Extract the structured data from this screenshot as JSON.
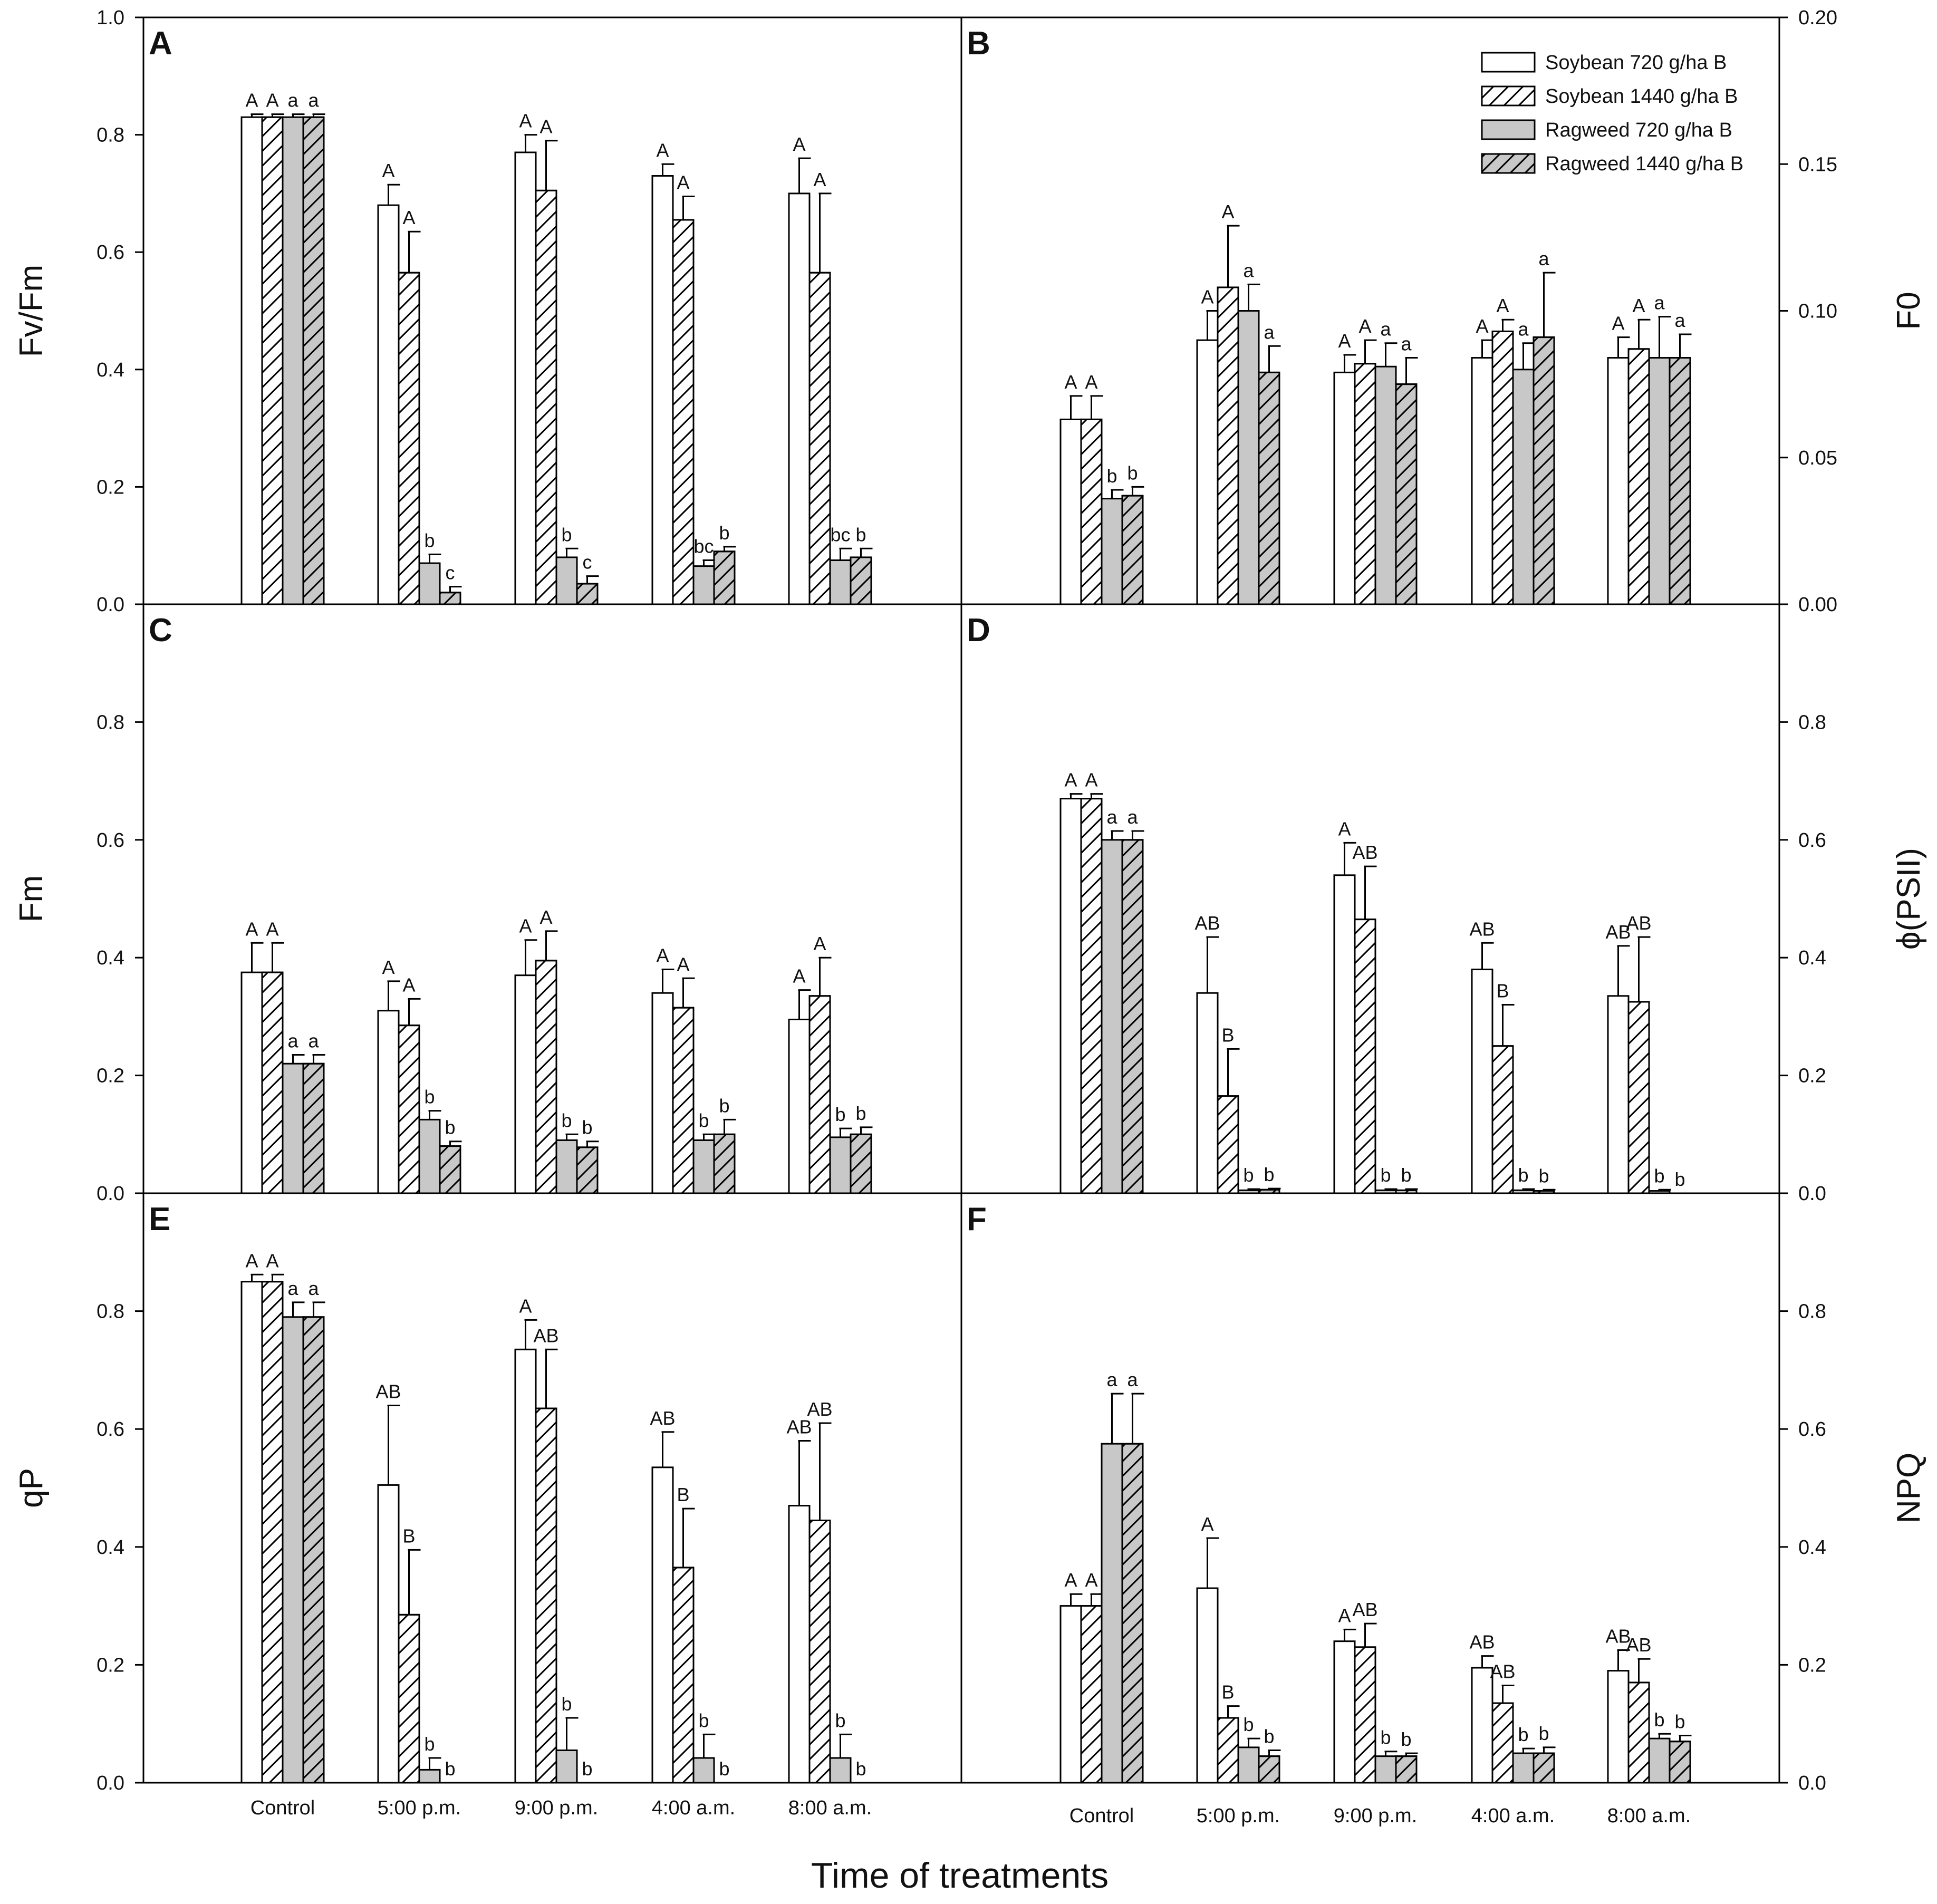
{
  "figure": {
    "xlabel": "Time of treatments"
  },
  "legend": [
    {
      "label": "Soybean 720 g/ha B",
      "fill": "white",
      "hatch": false
    },
    {
      "label": "Soybean 1440 g/ha B",
      "fill": "white",
      "hatch": true
    },
    {
      "label": "Ragweed 720 g/ha B",
      "fill": "gray",
      "hatch": false
    },
    {
      "label": "Ragweed 1440 g/ha B",
      "fill": "gray",
      "hatch": true
    }
  ],
  "colors": {
    "white": "#ffffff",
    "gray": "#c8c8c8",
    "stroke": "#000000"
  },
  "chart_data": [
    {
      "id": "A",
      "type": "bar",
      "label": "A",
      "ylabel": "Fv/Fm",
      "ylim": [
        0,
        1.0
      ],
      "ticks": [
        "0.0",
        "0.2",
        "0.4",
        "0.6",
        "0.8",
        "1.0"
      ],
      "categories": [
        "Control",
        "5:00 p.m.",
        "9:00 p.m.",
        "4:00 a.m.",
        "8:00 a.m."
      ],
      "series": [
        {
          "name": "Soybean 720 g/ha B",
          "values": [
            0.83,
            0.68,
            0.77,
            0.73,
            0.7
          ],
          "errors": [
            0.005,
            0.035,
            0.03,
            0.02,
            0.06
          ],
          "letters": [
            "A",
            "A",
            "A",
            "A",
            "A"
          ]
        },
        {
          "name": "Soybean 1440 g/ha B",
          "values": [
            0.83,
            0.565,
            0.705,
            0.655,
            0.565
          ],
          "errors": [
            0.005,
            0.07,
            0.085,
            0.04,
            0.135
          ],
          "letters": [
            "A",
            "A",
            "A",
            "A",
            "A"
          ]
        },
        {
          "name": "Ragweed 720 g/ha B",
          "values": [
            0.83,
            0.07,
            0.08,
            0.065,
            0.075
          ],
          "errors": [
            0.005,
            0.015,
            0.015,
            0.01,
            0.02
          ],
          "letters": [
            "a",
            "b",
            "b",
            "bc",
            "bc"
          ]
        },
        {
          "name": "Ragweed 1440 g/ha B",
          "values": [
            0.83,
            0.02,
            0.035,
            0.09,
            0.08
          ],
          "errors": [
            0.005,
            0.01,
            0.013,
            0.008,
            0.015
          ],
          "letters": [
            "a",
            "c",
            "c",
            "b",
            "b"
          ]
        }
      ]
    },
    {
      "id": "B",
      "type": "bar",
      "label": "B",
      "ylabel": "F0",
      "ylim": [
        0,
        0.2
      ],
      "ticks": [
        "0.00",
        "0.05",
        "0.10",
        "0.15",
        "0.20"
      ],
      "categories": [
        "Control",
        "5:00 p.m.",
        "9:00 p.m.",
        "4:00 a.m.",
        "8:00 a.m."
      ],
      "series": [
        {
          "name": "Soybean 720 g/ha B",
          "values": [
            0.063,
            0.09,
            0.079,
            0.084,
            0.084
          ],
          "errors": [
            0.008,
            0.01,
            0.006,
            0.006,
            0.007
          ],
          "letters": [
            "A",
            "A",
            "A",
            "A",
            "A"
          ]
        },
        {
          "name": "Soybean 1440 g/ha B",
          "values": [
            0.063,
            0.108,
            0.082,
            0.093,
            0.087
          ],
          "errors": [
            0.008,
            0.021,
            0.008,
            0.004,
            0.01
          ],
          "letters": [
            "A",
            "A",
            "A",
            "A",
            "A"
          ]
        },
        {
          "name": "Ragweed 720 g/ha B",
          "values": [
            0.036,
            0.1,
            0.081,
            0.08,
            0.084
          ],
          "errors": [
            0.003,
            0.009,
            0.008,
            0.009,
            0.014
          ],
          "letters": [
            "b",
            "a",
            "a",
            "a",
            "a"
          ]
        },
        {
          "name": "Ragweed 1440 g/ha B",
          "values": [
            0.037,
            0.079,
            0.075,
            0.091,
            0.084
          ],
          "errors": [
            0.003,
            0.009,
            0.009,
            0.022,
            0.008
          ],
          "letters": [
            "b",
            "a",
            "a",
            "a",
            "a"
          ]
        }
      ]
    },
    {
      "id": "C",
      "type": "bar",
      "label": "C",
      "ylabel": "Fm",
      "ylim": [
        0,
        1.0
      ],
      "ticks": [
        "0.0",
        "0.2",
        "0.4",
        "0.6",
        "0.8"
      ],
      "categories": [
        "Control",
        "5:00 p.m.",
        "9:00 p.m.",
        "4:00 a.m.",
        "8:00 a.m."
      ],
      "series": [
        {
          "name": "Soybean 720 g/ha B",
          "values": [
            0.375,
            0.31,
            0.37,
            0.34,
            0.295
          ],
          "errors": [
            0.05,
            0.05,
            0.06,
            0.04,
            0.05
          ],
          "letters": [
            "A",
            "A",
            "A",
            "A",
            "A"
          ]
        },
        {
          "name": "Soybean 1440 g/ha B",
          "values": [
            0.375,
            0.285,
            0.395,
            0.315,
            0.335
          ],
          "errors": [
            0.05,
            0.045,
            0.05,
            0.05,
            0.065
          ],
          "letters": [
            "A",
            "A",
            "A",
            "A",
            "A"
          ]
        },
        {
          "name": "Ragweed 720 g/ha B",
          "values": [
            0.22,
            0.125,
            0.09,
            0.09,
            0.095
          ],
          "errors": [
            0.015,
            0.015,
            0.01,
            0.01,
            0.015
          ],
          "letters": [
            "a",
            "b",
            "b",
            "b",
            "b"
          ]
        },
        {
          "name": "Ragweed 1440 g/ha B",
          "values": [
            0.22,
            0.08,
            0.078,
            0.1,
            0.1
          ],
          "errors": [
            0.015,
            0.008,
            0.01,
            0.025,
            0.012
          ],
          "letters": [
            "a",
            "b",
            "b",
            "b",
            "b"
          ]
        }
      ]
    },
    {
      "id": "D",
      "type": "bar",
      "label": "D",
      "ylabel": "ϕ(PSII)",
      "ylim": [
        0,
        1.0
      ],
      "ticks": [
        "0.0",
        "0.2",
        "0.4",
        "0.6",
        "0.8"
      ],
      "categories": [
        "Control",
        "5:00 p.m.",
        "9:00 p.m.",
        "4:00 a.m.",
        "8:00 a.m."
      ],
      "series": [
        {
          "name": "Soybean 720 g/ha B",
          "values": [
            0.67,
            0.34,
            0.54,
            0.38,
            0.335
          ],
          "errors": [
            0.008,
            0.095,
            0.055,
            0.045,
            0.085
          ],
          "letters": [
            "A",
            "AB",
            "A",
            "AB",
            "AB"
          ]
        },
        {
          "name": "Soybean 1440 g/ha B",
          "values": [
            0.67,
            0.165,
            0.465,
            0.25,
            0.325
          ],
          "errors": [
            0.008,
            0.08,
            0.09,
            0.07,
            0.11
          ],
          "letters": [
            "A",
            "B",
            "AB",
            "B",
            "AB"
          ]
        },
        {
          "name": "Ragweed 720 g/ha B",
          "values": [
            0.6,
            0.005,
            0.005,
            0.005,
            0.004
          ],
          "errors": [
            0.015,
            0.002,
            0.002,
            0.002,
            0.002
          ],
          "letters": [
            "a",
            "b",
            "b",
            "b",
            "b"
          ]
        },
        {
          "name": "Ragweed 1440 g/ha B",
          "values": [
            0.6,
            0.006,
            0.005,
            0.004,
            0.0
          ],
          "errors": [
            0.015,
            0.002,
            0.002,
            0.002,
            0.0
          ],
          "letters": [
            "a",
            "b",
            "b",
            "b",
            "b"
          ]
        }
      ]
    },
    {
      "id": "E",
      "type": "bar",
      "label": "E",
      "ylabel": "qP",
      "ylim": [
        0,
        1.0
      ],
      "ticks": [
        "0.0",
        "0.2",
        "0.4",
        "0.6",
        "0.8"
      ],
      "categories": [
        "Control",
        "5:00 p.m.",
        "9:00 p.m.",
        "4:00 a.m.",
        "8:00 a.m."
      ],
      "series": [
        {
          "name": "Soybean 720 g/ha B",
          "values": [
            0.85,
            0.505,
            0.735,
            0.535,
            0.47
          ],
          "errors": [
            0.012,
            0.135,
            0.05,
            0.06,
            0.11
          ],
          "letters": [
            "A",
            "AB",
            "A",
            "AB",
            "AB"
          ]
        },
        {
          "name": "Soybean 1440 g/ha B",
          "values": [
            0.85,
            0.285,
            0.635,
            0.365,
            0.445
          ],
          "errors": [
            0.012,
            0.11,
            0.1,
            0.1,
            0.165
          ],
          "letters": [
            "A",
            "B",
            "AB",
            "B",
            "AB"
          ]
        },
        {
          "name": "Ragweed 720 g/ha B",
          "values": [
            0.79,
            0.022,
            0.055,
            0.042,
            0.042
          ],
          "errors": [
            0.025,
            0.02,
            0.055,
            0.04,
            0.04
          ],
          "letters": [
            "a",
            "b",
            "b",
            "b",
            "b"
          ]
        },
        {
          "name": "Ragweed 1440 g/ha B",
          "values": [
            0.79,
            0.0,
            0.0,
            0.0,
            0.0
          ],
          "errors": [
            0.025,
            0.0,
            0.0,
            0.0,
            0.0
          ],
          "letters": [
            "a",
            "b",
            "b",
            "b",
            "b"
          ]
        }
      ]
    },
    {
      "id": "F",
      "type": "bar",
      "label": "F",
      "ylabel": "NPQ",
      "ylim": [
        0,
        1.0
      ],
      "ticks": [
        "0.0",
        "0.2",
        "0.4",
        "0.6",
        "0.8"
      ],
      "categories": [
        "Control",
        "5:00 p.m.",
        "9:00 p.m.",
        "4:00 a.m.",
        "8:00 a.m."
      ],
      "series": [
        {
          "name": "Soybean 720 g/ha B",
          "values": [
            0.3,
            0.33,
            0.24,
            0.195,
            0.19
          ],
          "errors": [
            0.02,
            0.085,
            0.02,
            0.02,
            0.035
          ],
          "letters": [
            "A",
            "A",
            "A",
            "AB",
            "AB"
          ]
        },
        {
          "name": "Soybean 1440 g/ha B",
          "values": [
            0.3,
            0.11,
            0.23,
            0.135,
            0.17
          ],
          "errors": [
            0.02,
            0.02,
            0.04,
            0.03,
            0.04
          ],
          "letters": [
            "A",
            "B",
            "AB",
            "AB",
            "AB"
          ]
        },
        {
          "name": "Ragweed 720 g/ha B",
          "values": [
            0.575,
            0.06,
            0.045,
            0.05,
            0.075
          ],
          "errors": [
            0.085,
            0.015,
            0.008,
            0.008,
            0.008
          ],
          "letters": [
            "a",
            "b",
            "b",
            "b",
            "b"
          ]
        },
        {
          "name": "Ragweed 1440 g/ha B",
          "values": [
            0.575,
            0.045,
            0.045,
            0.05,
            0.07
          ],
          "errors": [
            0.085,
            0.01,
            0.005,
            0.01,
            0.01
          ],
          "letters": [
            "a",
            "b",
            "b",
            "b",
            "b"
          ]
        }
      ]
    }
  ]
}
